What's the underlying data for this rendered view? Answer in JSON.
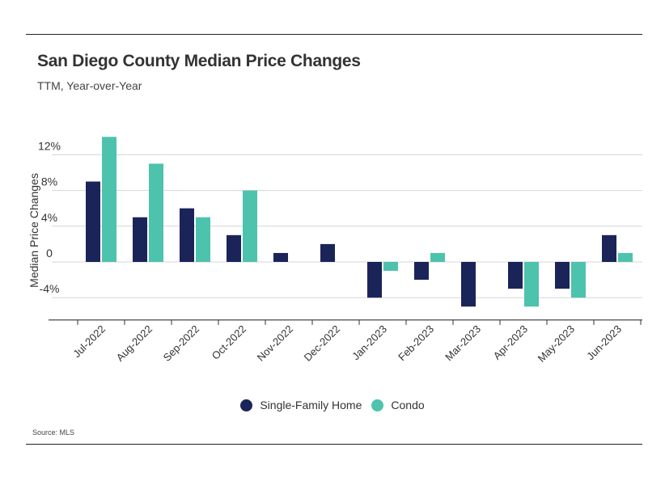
{
  "chart_data": {
    "type": "bar",
    "title": "San Diego County Median Price Changes",
    "subtitle": "TTM, Year-over-Year",
    "ylabel": "Median Price Changes",
    "xlabel": "",
    "categories": [
      "Jul-2022",
      "Aug-2022",
      "Sep-2022",
      "Oct-2022",
      "Nov-2022",
      "Dec-2022",
      "Jan-2023",
      "Feb-2023",
      "Mar-2023",
      "Apr-2023",
      "May-2023",
      "Jun-2023"
    ],
    "series": [
      {
        "name": "Single-Family Home",
        "color": "#1b2459",
        "values": [
          9,
          5,
          6,
          3,
          1,
          2,
          -4,
          -2,
          -5,
          -3,
          -3,
          3
        ]
      },
      {
        "name": "Condo",
        "color": "#4dc3ad",
        "values": [
          14,
          11,
          5,
          8,
          0,
          0,
          -1,
          1,
          0,
          -5,
          -4,
          1
        ]
      }
    ],
    "yticks": [
      -4,
      0,
      4,
      8,
      12
    ],
    "ytick_labels": [
      "-4%",
      "0",
      "4%",
      "8%",
      "12%"
    ],
    "ylim": [
      -6.5,
      14
    ],
    "grid": true,
    "legend_position": "bottom"
  },
  "source": "Source: MLS"
}
